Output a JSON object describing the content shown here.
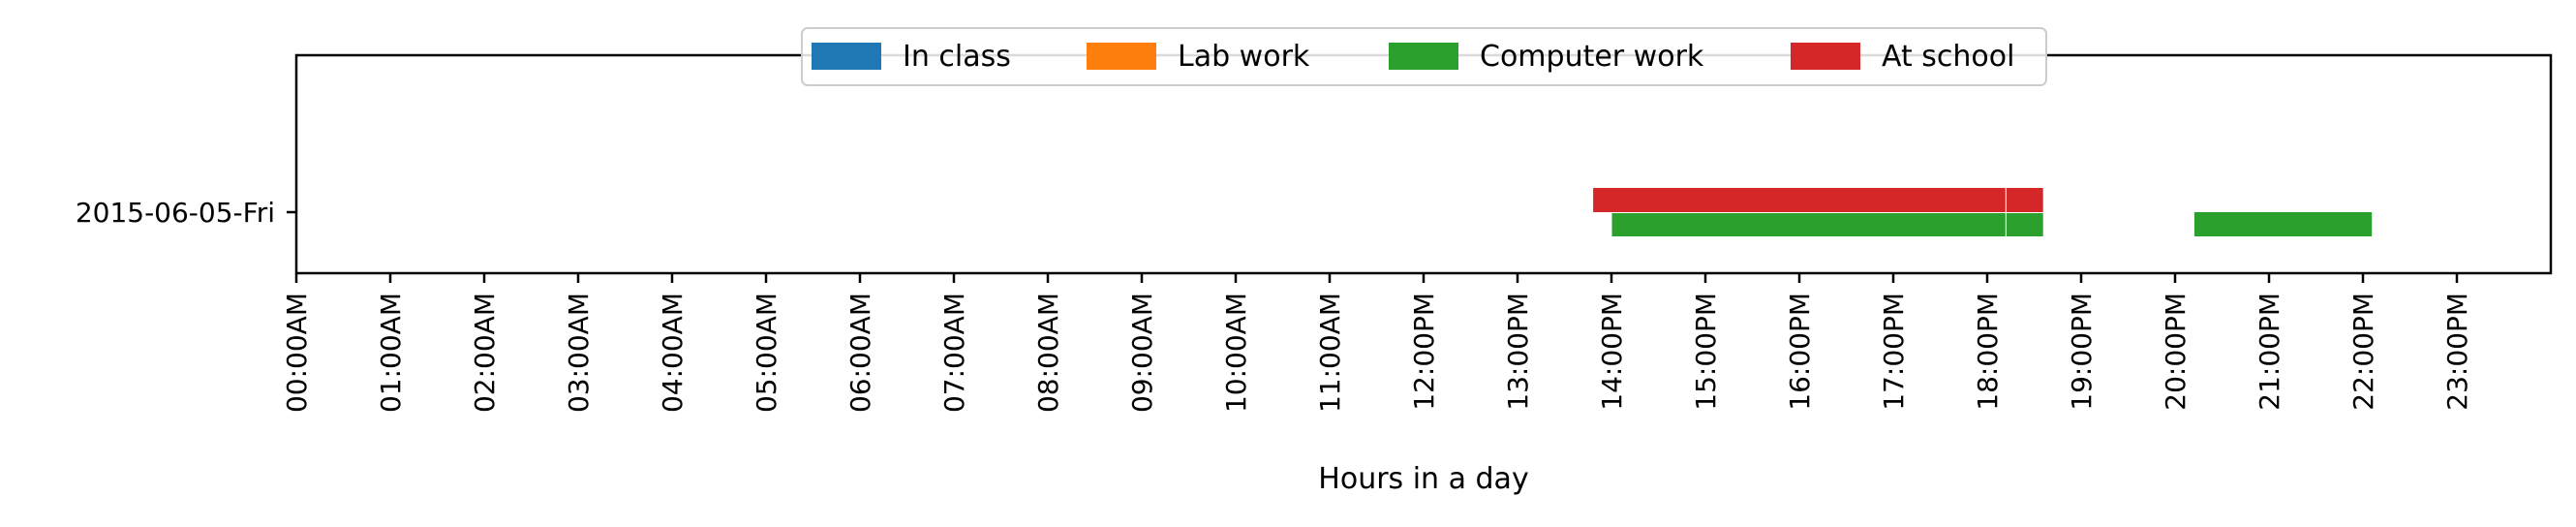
{
  "chart_data": {
    "type": "timeline",
    "title": "",
    "xlabel": "Hours in a day",
    "ylabel": "",
    "x_unit": "hours",
    "xlim": [
      0,
      24
    ],
    "x_ticks": [
      0,
      1,
      2,
      3,
      4,
      5,
      6,
      7,
      8,
      9,
      10,
      11,
      12,
      13,
      14,
      15,
      16,
      17,
      18,
      19,
      20,
      21,
      22,
      23
    ],
    "x_tick_labels": [
      "00:00AM",
      "01:00AM",
      "02:00AM",
      "03:00AM",
      "04:00AM",
      "05:00AM",
      "06:00AM",
      "07:00AM",
      "08:00AM",
      "09:00AM",
      "10:00AM",
      "11:00AM",
      "12:00PM",
      "13:00PM",
      "14:00PM",
      "15:00PM",
      "16:00PM",
      "17:00PM",
      "18:00PM",
      "19:00PM",
      "20:00PM",
      "21:00PM",
      "22:00PM",
      "23:00PM"
    ],
    "categories": [
      "2015-06-05-Fri"
    ],
    "legend_position": "top-center",
    "grid": false,
    "series": [
      {
        "name": "In class",
        "color": "#1f77b4",
        "lane": 0,
        "intervals": []
      },
      {
        "name": "Lab work",
        "color": "#ff7f0e",
        "lane": 0,
        "intervals": []
      },
      {
        "name": "Computer work",
        "color": "#2ca02c",
        "lane": -1,
        "intervals": [
          {
            "day": "2015-06-05-Fri",
            "start": 14.0,
            "end": 18.2
          },
          {
            "day": "2015-06-05-Fri",
            "start": 18.2,
            "end": 18.6
          },
          {
            "day": "2015-06-05-Fri",
            "start": 20.2,
            "end": 22.1
          }
        ]
      },
      {
        "name": "At school",
        "color": "#d62728",
        "lane": 1,
        "intervals": [
          {
            "day": "2015-06-05-Fri",
            "start": 13.8,
            "end": 18.2
          },
          {
            "day": "2015-06-05-Fri",
            "start": 18.2,
            "end": 18.6
          }
        ]
      }
    ]
  }
}
